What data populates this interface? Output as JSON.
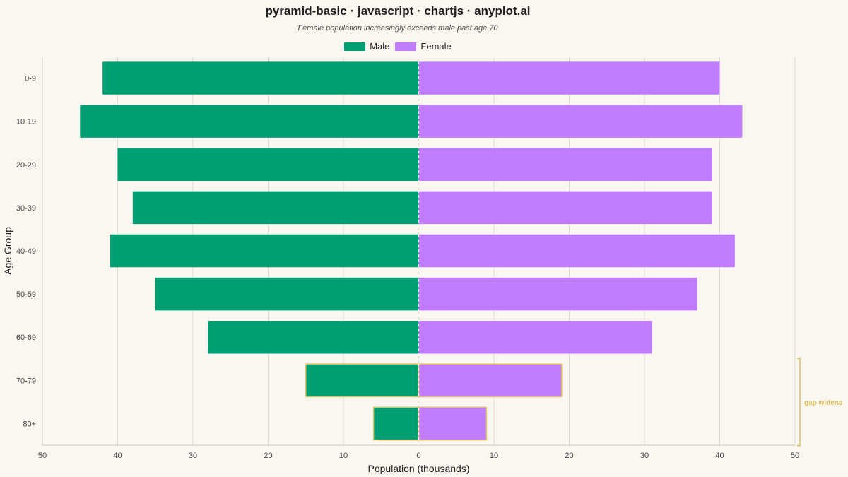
{
  "chart_data": {
    "type": "bar",
    "orientation": "horizontal",
    "subtype": "population-pyramid",
    "title": "pyramid-basic · javascript · chartjs · anyplot.ai",
    "subtitle": "Female population increasingly exceeds male past age 70",
    "xlabel": "Population (thousands)",
    "ylabel": "Age Group",
    "xlim": [
      -50,
      50
    ],
    "xticks": [
      -50,
      -40,
      -30,
      -20,
      -10,
      0,
      10,
      20,
      30,
      40,
      50
    ],
    "xtick_labels": [
      "50",
      "40",
      "30",
      "20",
      "10",
      "0",
      "10",
      "20",
      "30",
      "40",
      "50"
    ],
    "grid": true,
    "legend_position": "top",
    "categories": [
      "0-9",
      "10-19",
      "20-29",
      "30-39",
      "40-49",
      "50-59",
      "60-69",
      "70-79",
      "80+"
    ],
    "series": [
      {
        "name": "Male",
        "color": "#009e73",
        "values": [
          -42,
          -45,
          -40,
          -38,
          -41,
          -35,
          -28,
          -15,
          -6
        ]
      },
      {
        "name": "Female",
        "color": "#c27cff",
        "values": [
          40,
          43,
          39,
          39,
          42,
          37,
          31,
          19,
          9
        ]
      }
    ],
    "annotation": {
      "text": "gap widens",
      "color": "#e0c060",
      "categories": [
        "70-79",
        "80+"
      ]
    }
  }
}
